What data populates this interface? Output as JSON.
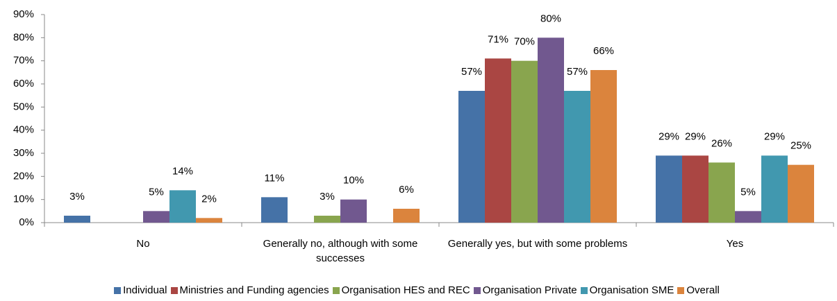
{
  "chart_data": {
    "type": "bar",
    "categories": [
      "No",
      "Generally no, although with some successes",
      "Generally yes, but with some problems",
      "Yes"
    ],
    "series": [
      {
        "name": "Individual",
        "color": "#4572a7",
        "values": [
          3,
          11,
          57,
          29
        ],
        "value_labels": [
          "3%",
          "11%",
          "57%",
          "29%"
        ]
      },
      {
        "name": "Ministries and Funding agencies",
        "color": "#aa4643",
        "values": [
          null,
          null,
          71,
          29
        ],
        "value_labels": [
          null,
          null,
          "71%",
          "29%"
        ]
      },
      {
        "name": "Organisation HES and REC",
        "color": "#89a54e",
        "values": [
          null,
          3,
          70,
          26
        ],
        "value_labels": [
          null,
          "3%",
          "70%",
          "26%"
        ]
      },
      {
        "name": "Organisation Private",
        "color": "#71588f",
        "values": [
          5,
          10,
          80,
          5
        ],
        "value_labels": [
          "5%",
          "10%",
          "80%",
          "5%"
        ]
      },
      {
        "name": "Organisation SME",
        "color": "#4198af",
        "values": [
          14,
          null,
          57,
          29
        ],
        "value_labels": [
          "14%",
          null,
          "57%",
          "29%"
        ]
      },
      {
        "name": "Overall",
        "color": "#db843d",
        "values": [
          2,
          6,
          66,
          25
        ],
        "value_labels": [
          "2%",
          "6%",
          "66%",
          "25%"
        ]
      }
    ],
    "ylim": [
      0,
      90
    ],
    "yticks": [
      {
        "value": 0,
        "label": "0%"
      },
      {
        "value": 10,
        "label": "10%"
      },
      {
        "value": 20,
        "label": "20%"
      },
      {
        "value": 30,
        "label": "30%"
      },
      {
        "value": 40,
        "label": "40%"
      },
      {
        "value": 50,
        "label": "50%"
      },
      {
        "value": 60,
        "label": "60%"
      },
      {
        "value": 70,
        "label": "70%"
      },
      {
        "value": 80,
        "label": "80%"
      },
      {
        "value": 90,
        "label": "90%"
      }
    ],
    "legend": "bottom"
  }
}
